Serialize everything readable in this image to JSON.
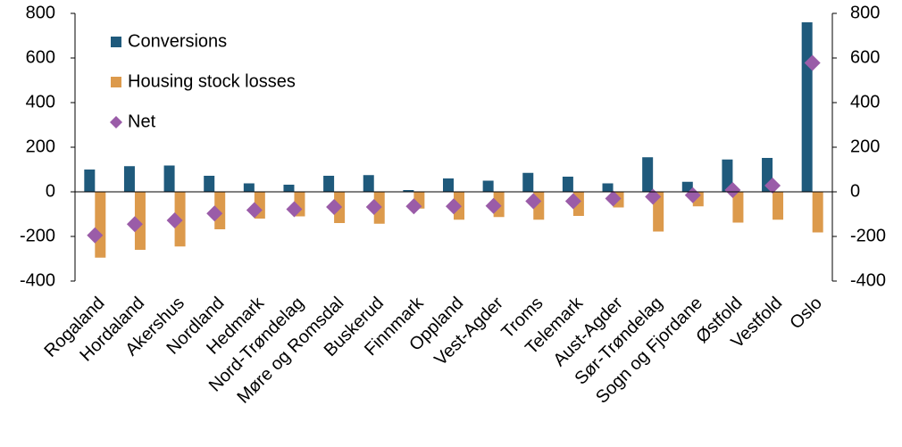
{
  "chart_data": {
    "type": "bar",
    "categories": [
      "Rogaland",
      "Hordaland",
      "Akershus",
      "Nordland",
      "Hedmark",
      "Nord-Trøndelag",
      "Møre og Romsdal",
      "Buskerud",
      "Finnmark",
      "Oppland",
      "Vest-Agder",
      "Troms",
      "Telemark",
      "Aust-Agder",
      "Sør-Trøndelag",
      "Sogn og Fjordane",
      "Østfold",
      "Vestfold",
      "Oslo"
    ],
    "series": [
      {
        "name": "Conversions",
        "type": "bar",
        "color": "#1f5a7c",
        "values": [
          100,
          115,
          118,
          72,
          38,
          32,
          72,
          75,
          8,
          60,
          50,
          85,
          68,
          38,
          155,
          45,
          145,
          152,
          760
        ]
      },
      {
        "name": "Housing stock losses",
        "type": "bar",
        "color": "#dc9a4c",
        "values": [
          -295,
          -260,
          -245,
          -168,
          -120,
          -110,
          -140,
          -143,
          -75,
          -125,
          -113,
          -125,
          -108,
          -70,
          -178,
          -65,
          -138,
          -125,
          -182
        ]
      },
      {
        "name": "Net",
        "type": "scatter",
        "color": "#9a5ca8",
        "values": [
          -195,
          -145,
          -128,
          -97,
          -82,
          -78,
          -68,
          -68,
          -65,
          -65,
          -63,
          -42,
          -42,
          -30,
          -22,
          -15,
          8,
          28,
          578
        ]
      }
    ],
    "ylim": [
      -400,
      800
    ],
    "yticks": [
      -400,
      -200,
      0,
      200,
      400,
      600,
      800
    ],
    "y2lim": [
      -400,
      800
    ],
    "y2ticks": [
      -400,
      -200,
      0,
      200,
      400,
      600,
      800
    ],
    "legend": "upper left",
    "grid": false
  }
}
